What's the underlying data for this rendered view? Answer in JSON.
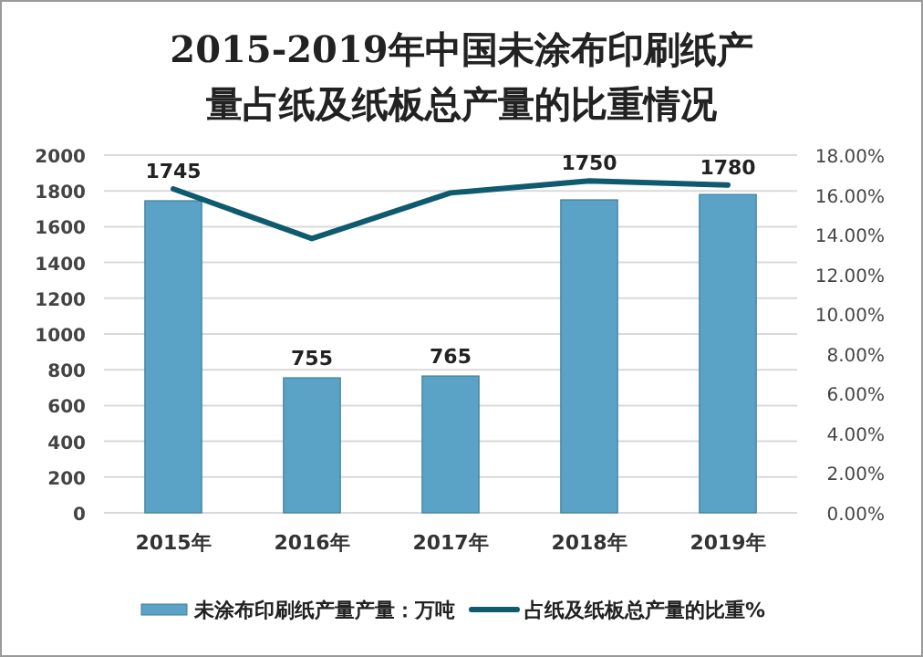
{
  "chart_data": {
    "type": "bar",
    "title": "2015-2019年中国未涂布印刷纸产量占纸及纸板总产量的比重情况",
    "categories": [
      "2015年",
      "2016年",
      "2017年",
      "2018年",
      "2019年"
    ],
    "series": [
      {
        "name": "未涂布印刷纸产量产量：万吨",
        "color": "#5ba3c6",
        "values": [
          1745,
          755,
          765,
          1750,
          1780
        ],
        "value_labels": [
          "1745",
          "755",
          "765",
          "1750",
          "1780"
        ]
      },
      {
        "name": "占纸及纸板总产量的比重%",
        "type": "line",
        "axis": "y2",
        "color": "#0e5a6e",
        "values": [
          16.3,
          13.8,
          16.1,
          16.7,
          16.5
        ]
      }
    ],
    "ylim": [
      0,
      2000
    ],
    "yticks": [
      0,
      200,
      400,
      600,
      800,
      1000,
      1200,
      1400,
      1600,
      1800,
      2000
    ],
    "y2lim": [
      0,
      18
    ],
    "y2ticks": [
      {
        "value": 0,
        "label": "0.00%"
      },
      {
        "value": 2,
        "label": "2.00%"
      },
      {
        "value": 4,
        "label": "4.00%"
      },
      {
        "value": 6,
        "label": "6.00%"
      },
      {
        "value": 8,
        "label": "8.00%"
      },
      {
        "value": 10,
        "label": "10.00%"
      },
      {
        "value": 12,
        "label": "12.00%"
      },
      {
        "value": 14,
        "label": "14.00%"
      },
      {
        "value": 16,
        "label": "16.00%"
      },
      {
        "value": 18,
        "label": "18.00%"
      }
    ],
    "grid": "y",
    "legend": "bottom"
  }
}
